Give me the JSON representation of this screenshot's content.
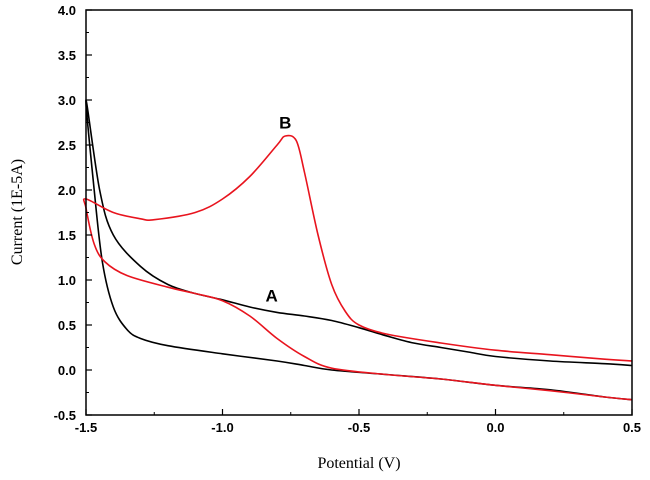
{
  "chart_data": {
    "type": "line",
    "title": "",
    "xlabel": "Potential (V)",
    "ylabel": "Current (1E-5A)",
    "xlim": [
      -1.5,
      0.5
    ],
    "ylim": [
      -0.5,
      4.0
    ],
    "xticks": [
      "-1.5",
      "-1.0",
      "-0.5",
      "0.0",
      "0.5"
    ],
    "yticks": [
      "-0.5",
      "0.0",
      "0.5",
      "1.0",
      "1.5",
      "2.0",
      "2.5",
      "3.0",
      "3.5",
      "4.0"
    ],
    "xtick_values": [
      -1.5,
      -1.0,
      -0.5,
      0.0,
      0.5
    ],
    "ytick_values": [
      -0.5,
      0.0,
      0.5,
      1.0,
      1.5,
      2.0,
      2.5,
      3.0,
      3.5,
      4.0
    ],
    "grid": false,
    "series": [
      {
        "name": "A",
        "color": "#000000",
        "x": [
          0.5,
          0.4,
          0.2,
          0.0,
          -0.1,
          -0.2,
          -0.3,
          -0.4,
          -0.5,
          -0.6,
          -0.7,
          -0.8,
          -0.9,
          -1.0,
          -1.1,
          -1.2,
          -1.3,
          -1.4,
          -1.45,
          -1.5,
          -1.47,
          -1.44,
          -1.4,
          -1.35,
          -1.3,
          -1.2,
          -1.0,
          -0.8,
          -0.7,
          -0.6,
          -0.4,
          -0.2,
          0.0,
          0.2,
          0.4,
          0.5
        ],
        "y": [
          0.05,
          0.07,
          0.1,
          0.15,
          0.2,
          0.25,
          0.3,
          0.38,
          0.47,
          0.55,
          0.6,
          0.64,
          0.7,
          0.78,
          0.85,
          0.95,
          1.15,
          1.5,
          2.0,
          3.0,
          2.0,
          1.2,
          0.7,
          0.45,
          0.35,
          0.27,
          0.18,
          0.1,
          0.05,
          0.0,
          -0.05,
          -0.1,
          -0.17,
          -0.22,
          -0.3,
          -0.33
        ]
      },
      {
        "name": "B",
        "color": "#e8141e",
        "x": [
          0.5,
          0.4,
          0.2,
          0.0,
          -0.2,
          -0.4,
          -0.5,
          -0.55,
          -0.6,
          -0.65,
          -0.7,
          -0.73,
          -0.77,
          -0.8,
          -0.9,
          -1.0,
          -1.1,
          -1.25,
          -1.3,
          -1.4,
          -1.5,
          -1.5,
          -1.47,
          -1.43,
          -1.35,
          -1.2,
          -1.1,
          -1.0,
          -0.9,
          -0.8,
          -0.7,
          -0.6,
          -0.4,
          -0.2,
          0.0,
          0.2,
          0.4,
          0.5
        ],
        "y": [
          0.1,
          0.12,
          0.17,
          0.22,
          0.3,
          0.4,
          0.5,
          0.65,
          0.95,
          1.5,
          2.2,
          2.55,
          2.6,
          2.5,
          2.15,
          1.9,
          1.75,
          1.67,
          1.68,
          1.75,
          1.9,
          1.8,
          1.4,
          1.2,
          1.05,
          0.92,
          0.85,
          0.77,
          0.6,
          0.35,
          0.15,
          0.02,
          -0.05,
          -0.1,
          -0.17,
          -0.23,
          -0.3,
          -0.33
        ]
      }
    ],
    "annotations": [
      {
        "text": "A",
        "x": -0.82,
        "y": 0.83
      },
      {
        "text": "B",
        "x": -0.77,
        "y": 2.75
      }
    ]
  }
}
